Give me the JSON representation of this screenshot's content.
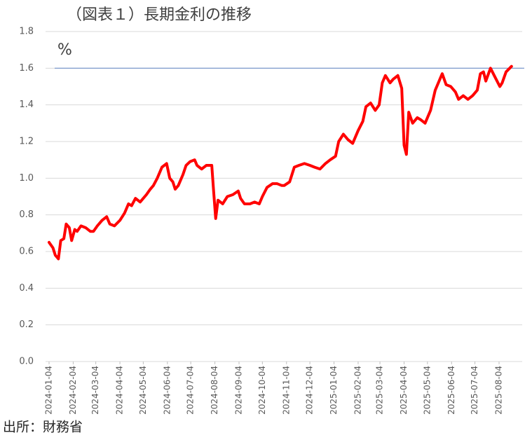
{
  "chart_data": {
    "type": "line",
    "title": "（図表１）長期金利の推移",
    "y_label": "%",
    "source": "出所：財務省",
    "color": "#ff0000",
    "reference_line": 1.6,
    "reference_color": "#6f8fc9",
    "grid": true,
    "xlim": [
      "2024-01-04",
      "2025-08-22"
    ],
    "xticks": [
      "2024-01-04",
      "2024-02-04",
      "2024-03-04",
      "2024-04-04",
      "2024-05-04",
      "2024-06-04",
      "2024-07-04",
      "2024-08-04",
      "2024-09-04",
      "2024-10-04",
      "2024-11-04",
      "2024-12-04",
      "2025-01-04",
      "2025-02-04",
      "2025-03-04",
      "2025-04-04",
      "2025-05-04",
      "2025-06-04",
      "2025-07-04",
      "2025-08-04"
    ],
    "ylim": [
      0,
      1.8
    ],
    "yticks": [
      {
        "value": 0,
        "label": "0.0"
      },
      0.2,
      0.4,
      0.6,
      0.8,
      {
        "value": 1,
        "label": "1.0"
      },
      1.2,
      1.4,
      1.6,
      1.8
    ],
    "x": [
      "2024-01-04",
      "2024-01-09",
      "2024-01-12",
      "2024-01-16",
      "2024-01-19",
      "2024-01-23",
      "2024-01-26",
      "2024-01-30",
      "2024-02-02",
      "2024-02-06",
      "2024-02-09",
      "2024-02-14",
      "2024-02-20",
      "2024-02-26",
      "2024-03-01",
      "2024-03-06",
      "2024-03-12",
      "2024-03-18",
      "2024-03-22",
      "2024-03-28",
      "2024-04-04",
      "2024-04-10",
      "2024-04-15",
      "2024-04-19",
      "2024-04-24",
      "2024-04-30",
      "2024-05-08",
      "2024-05-13",
      "2024-05-17",
      "2024-05-22",
      "2024-05-28",
      "2024-06-03",
      "2024-06-07",
      "2024-06-11",
      "2024-06-14",
      "2024-06-18",
      "2024-06-24",
      "2024-06-28",
      "2024-07-03",
      "2024-07-09",
      "2024-07-12",
      "2024-07-18",
      "2024-07-24",
      "2024-07-31",
      "2024-08-02",
      "2024-08-05",
      "2024-08-08",
      "2024-08-14",
      "2024-08-20",
      "2024-08-27",
      "2024-09-03",
      "2024-09-06",
      "2024-09-11",
      "2024-09-18",
      "2024-09-24",
      "2024-09-30",
      "2024-10-04",
      "2024-10-10",
      "2024-10-17",
      "2024-10-23",
      "2024-10-29",
      "2024-11-01",
      "2024-11-08",
      "2024-11-14",
      "2024-11-20",
      "2024-11-27",
      "2024-12-04",
      "2024-12-10",
      "2024-12-17",
      "2024-12-24",
      "2024-12-30",
      "2025-01-06",
      "2025-01-10",
      "2025-01-16",
      "2025-01-22",
      "2025-01-28",
      "2025-02-04",
      "2025-02-10",
      "2025-02-14",
      "2025-02-20",
      "2025-02-26",
      "2025-03-03",
      "2025-03-07",
      "2025-03-11",
      "2025-03-17",
      "2025-03-21",
      "2025-03-27",
      "2025-04-01",
      "2025-04-04",
      "2025-04-07",
      "2025-04-10",
      "2025-04-15",
      "2025-04-21",
      "2025-04-25",
      "2025-05-01",
      "2025-05-08",
      "2025-05-14",
      "2025-05-20",
      "2025-05-23",
      "2025-05-28",
      "2025-06-03",
      "2025-06-09",
      "2025-06-13",
      "2025-06-19",
      "2025-06-25",
      "2025-07-01",
      "2025-07-07",
      "2025-07-11",
      "2025-07-15",
      "2025-07-18",
      "2025-07-24",
      "2025-07-30",
      "2025-08-05",
      "2025-08-08",
      "2025-08-13",
      "2025-08-20"
    ],
    "values": [
      0.65,
      0.62,
      0.58,
      0.56,
      0.66,
      0.67,
      0.75,
      0.73,
      0.66,
      0.72,
      0.71,
      0.74,
      0.73,
      0.71,
      0.71,
      0.74,
      0.77,
      0.79,
      0.75,
      0.74,
      0.77,
      0.81,
      0.86,
      0.85,
      0.89,
      0.87,
      0.91,
      0.94,
      0.96,
      1.0,
      1.06,
      1.08,
      1.0,
      0.98,
      0.94,
      0.96,
      1.02,
      1.07,
      1.09,
      1.1,
      1.07,
      1.05,
      1.07,
      1.07,
      0.95,
      0.78,
      0.88,
      0.86,
      0.9,
      0.91,
      0.93,
      0.89,
      0.86,
      0.86,
      0.87,
      0.86,
      0.9,
      0.95,
      0.97,
      0.97,
      0.96,
      0.96,
      0.98,
      1.06,
      1.07,
      1.08,
      1.07,
      1.06,
      1.05,
      1.08,
      1.1,
      1.12,
      1.2,
      1.24,
      1.21,
      1.19,
      1.26,
      1.31,
      1.39,
      1.41,
      1.37,
      1.4,
      1.52,
      1.56,
      1.52,
      1.54,
      1.56,
      1.49,
      1.18,
      1.13,
      1.36,
      1.3,
      1.33,
      1.32,
      1.3,
      1.37,
      1.48,
      1.54,
      1.57,
      1.51,
      1.5,
      1.47,
      1.43,
      1.45,
      1.43,
      1.45,
      1.48,
      1.57,
      1.58,
      1.53,
      1.6,
      1.55,
      1.5,
      1.52,
      1.58,
      1.61
    ]
  }
}
